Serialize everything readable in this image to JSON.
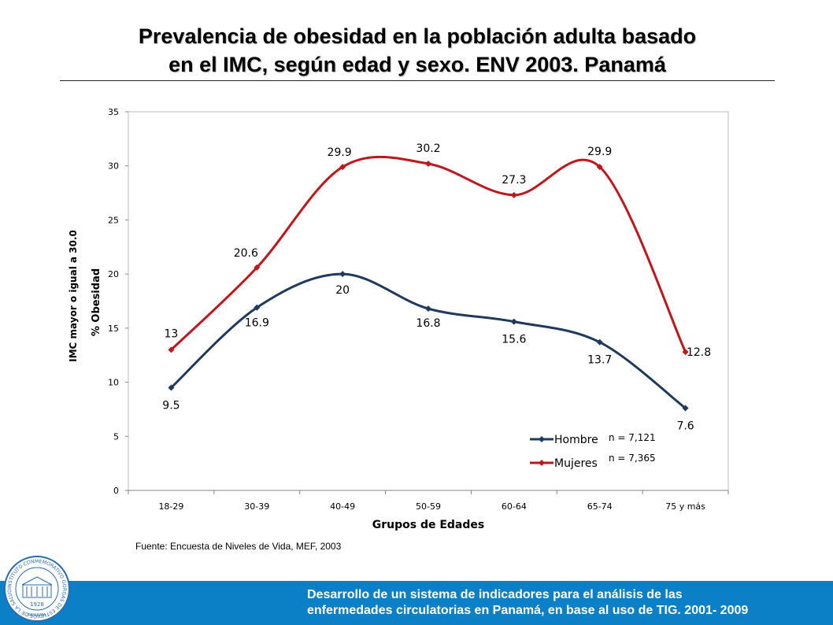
{
  "slide": {
    "title_line1": "Prevalencia  de obesidad en la población adulta basado",
    "title_line2": "en el IMC, según edad y sexo. ENV 2003. Panamá",
    "source": "Fuente: Encuesta de Niveles de Vida, MEF, 2003",
    "footer_line1": "Desarrollo de un sistema de indicadores para el análisis de las",
    "footer_line2": "enfermedades circulatorias en Panamá, en base al uso de TIG. 2001- 2009",
    "seal": {
      "year": "1928",
      "bottom_text": "PANAMA",
      "ring_text": "INSTITUTO CONMEMORATIVO GORGAS DE ESTUDIOS DE LA SALUD"
    },
    "colors": {
      "footer": "#0b80c6"
    }
  },
  "chart_data": {
    "type": "line",
    "categories": [
      "18-29",
      "30-39",
      "40-49",
      "50-59",
      "60-64",
      "65-74",
      "75 y más"
    ],
    "series": [
      {
        "name": "Hombre",
        "values": [
          9.5,
          16.9,
          20,
          16.8,
          15.6,
          13.7,
          7.6
        ],
        "color": "#1f3a5c",
        "n_label": "n = 7,121"
      },
      {
        "name": "Mujeres",
        "values": [
          13,
          20.6,
          29.9,
          30.2,
          27.3,
          29.9,
          12.8
        ],
        "color": "#c0171c",
        "n_label": "n = 7,365"
      }
    ],
    "data_labels": {
      "Hombre": [
        "9.5",
        "16.9",
        "20",
        "16.8",
        "15.6",
        "13.7",
        "7.6"
      ],
      "Mujeres": [
        "13",
        "20.6",
        "29.9",
        "30.2",
        "27.3",
        "29.9",
        "12.8"
      ]
    },
    "xlabel": "Grupos de Edades",
    "ylabel_line1": "IMC mayor o igual a 30.0",
    "ylabel_line2": "% Obesidad",
    "ylim": [
      0,
      35
    ],
    "yticks": [
      "0",
      "5",
      "10",
      "15",
      "20",
      "25",
      "30",
      "35"
    ],
    "smooth": true,
    "grid": false,
    "legend_position": "bottom-right"
  }
}
